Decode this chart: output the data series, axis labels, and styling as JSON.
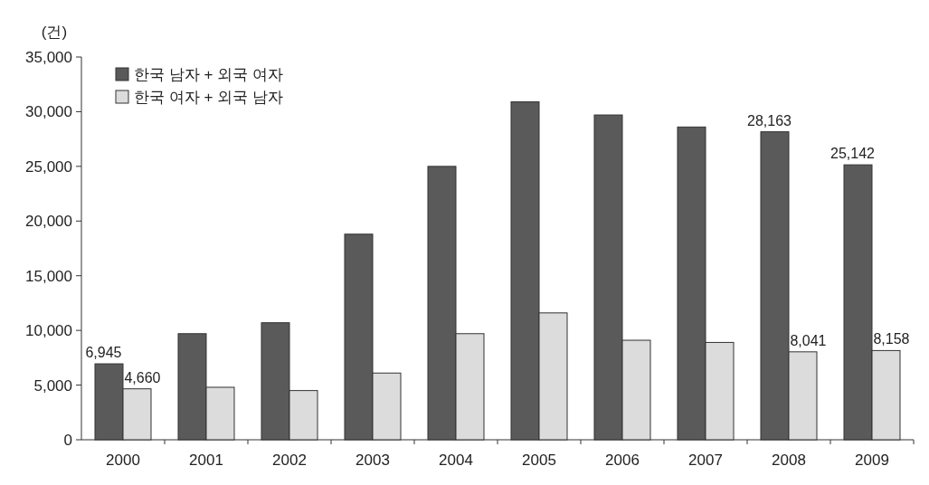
{
  "chart_data": {
    "type": "bar",
    "ylabel": "(건)",
    "categories": [
      "2000",
      "2001",
      "2002",
      "2003",
      "2004",
      "2005",
      "2006",
      "2007",
      "2008",
      "2009"
    ],
    "series": [
      {
        "name": "한국 남자 + 외국 여자",
        "color": "#5a5a5a",
        "values": [
          6945,
          9700,
          10700,
          18800,
          25000,
          30900,
          29700,
          28600,
          28163,
          25142
        ],
        "value_labels": [
          "6,945",
          null,
          null,
          null,
          null,
          null,
          null,
          null,
          "28,163",
          "25,142"
        ]
      },
      {
        "name": "한국 여자 + 외국 남자",
        "color": "#dcdcdc",
        "values": [
          4660,
          4800,
          4500,
          6100,
          9700,
          11600,
          9100,
          8900,
          8041,
          8158
        ],
        "value_labels": [
          "4,660",
          null,
          null,
          null,
          null,
          null,
          null,
          null,
          "8,041",
          "8,158"
        ]
      }
    ],
    "ylim": [
      0,
      35000
    ],
    "yticks": [
      0,
      {
        "value": 5000,
        "label": "5,000"
      },
      {
        "value": 10000,
        "label": "10,000"
      },
      {
        "value": 15000,
        "label": "15,000"
      },
      {
        "value": 20000,
        "label": "20,000"
      },
      {
        "value": 25000,
        "label": "25,000"
      },
      {
        "value": 30000,
        "label": "30,000"
      },
      {
        "value": 35000,
        "label": "35,000"
      }
    ],
    "grid": false,
    "legend": "top left"
  }
}
